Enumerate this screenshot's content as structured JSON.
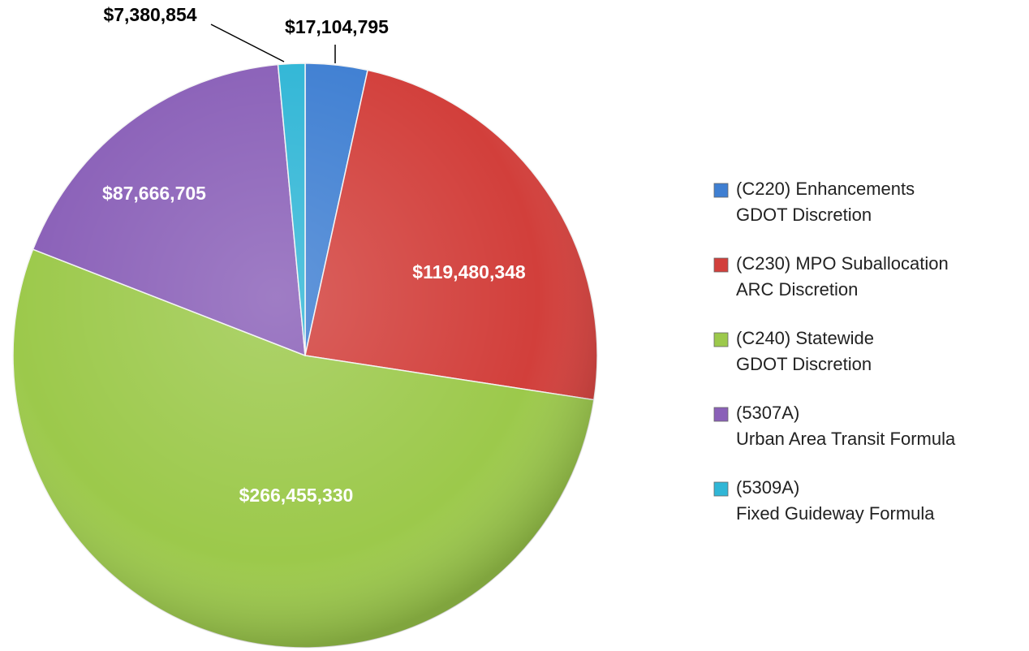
{
  "chart_data": {
    "type": "pie",
    "categories": [
      [
        "(C220) Enhancements",
        "GDOT Discretion"
      ],
      [
        "(C230) MPO Suballocation",
        "ARC Discretion"
      ],
      [
        "(C240) Statewide",
        "GDOT Discretion"
      ],
      [
        "(5307A)",
        "Urban Area Transit Formula"
      ],
      [
        "(5309A)",
        "Fixed Guideway Formula"
      ]
    ],
    "values": [
      17104795,
      119480348,
      266455330,
      87666705,
      7380854
    ],
    "value_labels": [
      "$17,104,795",
      "$119,480,348",
      "$266,455,330",
      "$87,666,705",
      "$7,380,854"
    ],
    "colors": [
      "#3f7fd2",
      "#d23f3b",
      "#9cc94b",
      "#8a60b8",
      "#30b6d6"
    ],
    "legend": "right"
  }
}
